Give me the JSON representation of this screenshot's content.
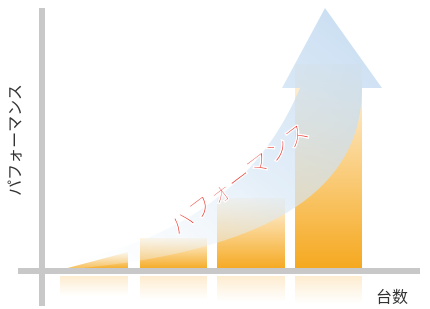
{
  "y_axis_label": "パフォーマンス",
  "x_axis_label": "台数",
  "arrow_label": "パフォーマンス"
}
